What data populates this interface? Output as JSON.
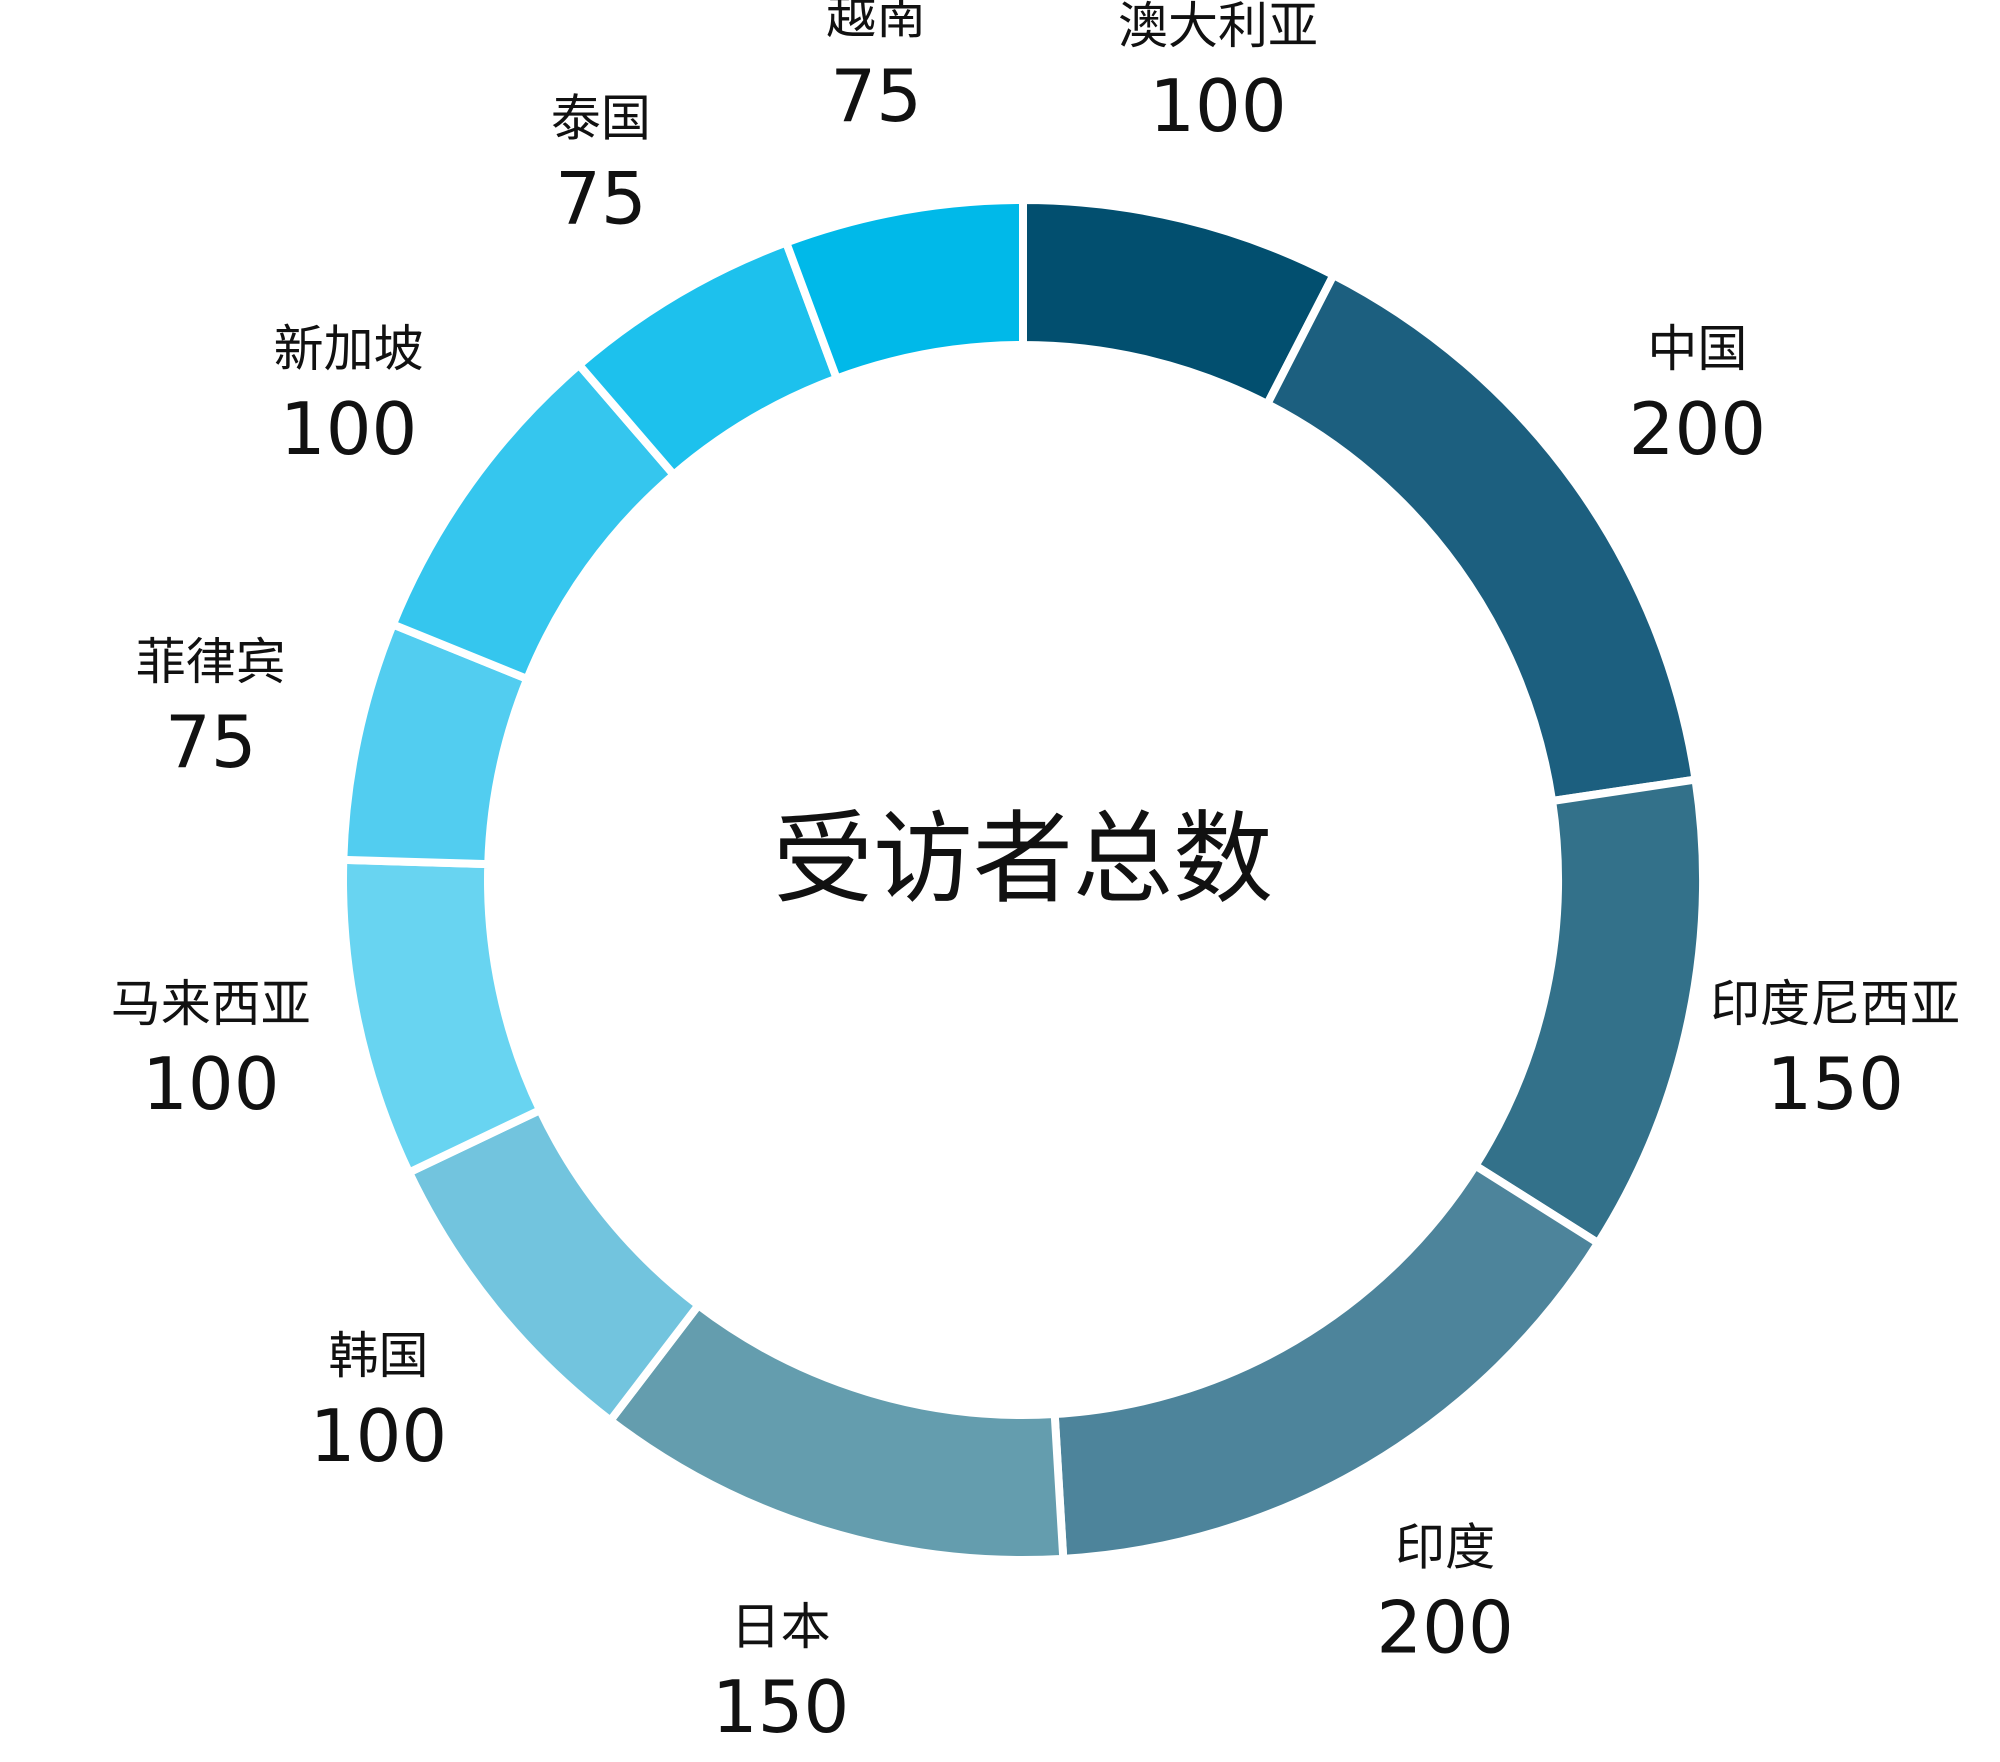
{
  "chart_data": {
    "type": "pie",
    "title": "受访者总数",
    "categories": [
      "澳大利亚",
      "中国",
      "印度尼西亚",
      "印度",
      "日本",
      "韩国",
      "马来西亚",
      "菲律宾",
      "新加坡",
      "泰国",
      "越南"
    ],
    "values": [
      100,
      200,
      150,
      200,
      150,
      100,
      100,
      75,
      100,
      75,
      75
    ],
    "colors": [
      "#024f6f",
      "#1c5f7f",
      "#33718a",
      "#4d849b",
      "#649dae",
      "#72c4de",
      "#68d4f1",
      "#52cdf0",
      "#35c6ee",
      "#1dc1ed",
      "#00b9e9"
    ],
    "value_labels": [
      "100",
      "200",
      "150",
      "200",
      "150",
      "100",
      "100",
      "75",
      "100",
      "75",
      "75"
    ]
  }
}
